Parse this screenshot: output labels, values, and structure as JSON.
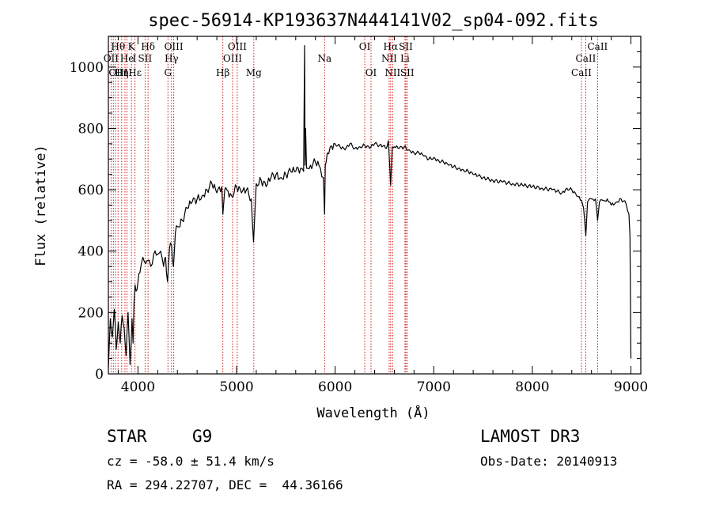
{
  "chart_data": {
    "type": "line",
    "title": "spec-56914-KP193637N444141V02_sp04-092.fits",
    "xlabel": "Wavelength (Å)",
    "ylabel": "Flux (relative)",
    "xlim": [
      3700,
      9100
    ],
    "ylim": [
      0,
      1100
    ],
    "xticks": [
      4000,
      5000,
      6000,
      7000,
      8000,
      9000
    ],
    "yticks": [
      0,
      200,
      400,
      600,
      800,
      1000
    ],
    "series": [
      {
        "name": "spectrum",
        "x": [
          3700,
          3720,
          3740,
          3760,
          3780,
          3800,
          3820,
          3840,
          3860,
          3880,
          3900,
          3920,
          3940,
          3950,
          3960,
          3970,
          3980,
          4000,
          4020,
          4050,
          4080,
          4100,
          4130,
          4160,
          4200,
          4230,
          4260,
          4280,
          4300,
          4320,
          4340,
          4360,
          4380,
          4400,
          4450,
          4500,
          4550,
          4600,
          4650,
          4700,
          4750,
          4800,
          4850,
          4861,
          4880,
          4900,
          4950,
          5000,
          5050,
          5100,
          5150,
          5172,
          5200,
          5250,
          5300,
          5350,
          5400,
          5450,
          5500,
          5550,
          5600,
          5650,
          5680,
          5690,
          5695,
          5700,
          5710,
          5720,
          5750,
          5800,
          5850,
          5880,
          5893,
          5900,
          5920,
          5950,
          6000,
          6050,
          6100,
          6150,
          6200,
          6250,
          6300,
          6350,
          6400,
          6450,
          6500,
          6520,
          6540,
          6563,
          6580,
          6600,
          6650,
          6700,
          6750,
          6800,
          6850,
          6900,
          6950,
          7000,
          7050,
          7100,
          7150,
          7200,
          7250,
          7300,
          7350,
          7400,
          7450,
          7500,
          7600,
          7700,
          7800,
          7900,
          8000,
          8100,
          8200,
          8250,
          8300,
          8350,
          8400,
          8450,
          8500,
          8520,
          8542,
          8560,
          8600,
          8640,
          8662,
          8680,
          8720,
          8760,
          8800,
          8850,
          8900,
          8950,
          8980,
          8990,
          9000
        ],
        "y": [
          20,
          180,
          120,
          210,
          80,
          170,
          100,
          190,
          150,
          60,
          200,
          30,
          180,
          100,
          230,
          290,
          270,
          300,
          330,
          380,
          360,
          370,
          350,
          390,
          390,
          400,
          350,
          380,
          300,
          410,
          420,
          350,
          460,
          480,
          500,
          540,
          560,
          570,
          580,
          600,
          620,
          590,
          610,
          520,
          600,
          600,
          580,
          610,
          590,
          600,
          570,
          430,
          620,
          630,
          610,
          640,
          650,
          640,
          650,
          660,
          660,
          670,
          660,
          1070,
          680,
          800,
          670,
          670,
          680,
          690,
          670,
          640,
          520,
          680,
          720,
          740,
          750,
          740,
          730,
          750,
          735,
          740,
          745,
          735,
          750,
          745,
          745,
          735,
          760,
          615,
          740,
          740,
          735,
          740,
          730,
          720,
          720,
          710,
          700,
          705,
          695,
          690,
          680,
          675,
          670,
          665,
          660,
          650,
          645,
          640,
          630,
          625,
          620,
          615,
          610,
          605,
          600,
          595,
          590,
          605,
          600,
          580,
          565,
          540,
          450,
          560,
          570,
          570,
          500,
          560,
          565,
          570,
          550,
          560,
          570,
          555,
          520,
          450,
          50
        ]
      }
    ],
    "line_markers": [
      {
        "label": "Hθ",
        "x": 3798,
        "row": 0
      },
      {
        "label": "K",
        "x": 3934,
        "row": 0
      },
      {
        "label": "Hδ",
        "x": 4102,
        "row": 0
      },
      {
        "label": "OIII",
        "x": 4363,
        "row": 0
      },
      {
        "label": "OIII",
        "x": 5007,
        "row": 0
      },
      {
        "label": "OI",
        "x": 6300,
        "row": 0
      },
      {
        "label": "Hα",
        "x": 6563,
        "row": 0
      },
      {
        "label": "SII",
        "x": 6717,
        "row": 0
      },
      {
        "label": "CaII",
        "x": 8662,
        "row": 0
      },
      {
        "label": "OII",
        "x": 3727,
        "row": 1
      },
      {
        "label": "He",
        "x": 3889,
        "row": 1
      },
      {
        "label": "I",
        "x": 3965,
        "row": 1
      },
      {
        "label": "SII",
        "x": 4072,
        "row": 1
      },
      {
        "label": "Hγ",
        "x": 4340,
        "row": 1
      },
      {
        "label": "OIII",
        "x": 4959,
        "row": 1
      },
      {
        "label": "Na",
        "x": 5893,
        "row": 1
      },
      {
        "label": "NII",
        "x": 6548,
        "row": 1
      },
      {
        "label": "Li",
        "x": 6708,
        "row": 1
      },
      {
        "label": "CaII",
        "x": 8542,
        "row": 1
      },
      {
        "label": "OIII",
        "x": 3800,
        "row": 2
      },
      {
        "label": "Hη",
        "x": 3835,
        "row": 2
      },
      {
        "label": "Hε",
        "x": 3970,
        "row": 2
      },
      {
        "label": "G",
        "x": 4304,
        "row": 2
      },
      {
        "label": "Hβ",
        "x": 4861,
        "row": 2
      },
      {
        "label": "Mg",
        "x": 5175,
        "row": 2
      },
      {
        "label": "OI",
        "x": 6364,
        "row": 2
      },
      {
        "label": "NII",
        "x": 6583,
        "row": 2
      },
      {
        "label": "SII",
        "x": 6731,
        "row": 2
      },
      {
        "label": "CaII",
        "x": 8498,
        "row": 2
      }
    ],
    "marker_line_x": [
      3727,
      3750,
      3771,
      3798,
      3835,
      3868,
      3889,
      3934,
      3970,
      4072,
      4102,
      4304,
      4340,
      4363,
      4861,
      4959,
      5007,
      5175,
      5893,
      6300,
      6364,
      6548,
      6563,
      6583,
      6708,
      6717,
      6731,
      8498,
      8542,
      8662
    ]
  },
  "info": {
    "object_class": "STAR",
    "subclass": "G9",
    "survey": "LAMOST DR3",
    "cz": "cz = -58.0 ± 51.4 km/s",
    "obs_date": "Obs-Date: 20140913",
    "coords": "RA = 294.22707, DEC =  44.36166"
  },
  "colors": {
    "line_marker": "#cc0000",
    "spectrum": "#000000",
    "axes": "#000000"
  }
}
